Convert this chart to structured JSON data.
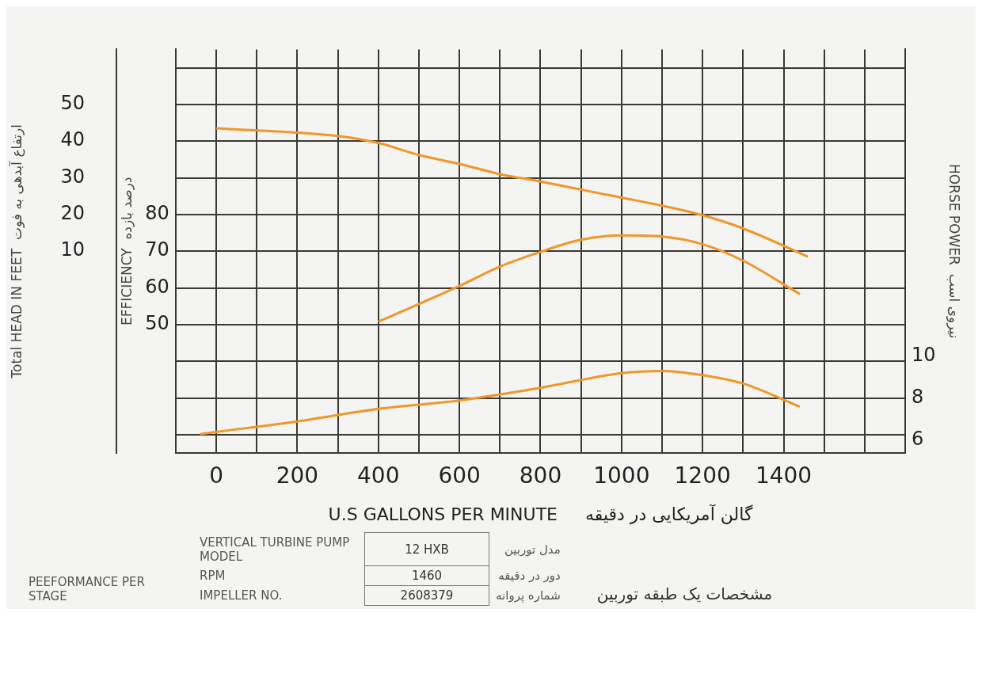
{
  "chart_data": {
    "type": "line",
    "xlabel": "U.S GALLONS PER MINUTE     گالن آمریکایی در دقیقه",
    "ylabel": "Total HEAD IN FEET  ارتفاع آبدهی به فوت",
    "y2label": "EFFICIENCY  درصد بازده",
    "y3label": "HORSE POWER  نیروی اسب",
    "xlim": [
      -100,
      1700
    ],
    "xticks": [
      0,
      {
        "value": 100,
        "label": null
      },
      200,
      {
        "value": 300,
        "label": null
      },
      400,
      {
        "value": 500,
        "label": null
      },
      600,
      {
        "value": 700,
        "label": null
      },
      800,
      {
        "value": 900,
        "label": null
      },
      1000,
      {
        "value": 1100,
        "label": null
      },
      1200,
      {
        "value": 1300,
        "label": null
      },
      1400,
      {
        "value": 1500,
        "label": null
      },
      {
        "value": 1600,
        "label": null
      }
    ],
    "ylim": [
      -45,
      65
    ],
    "yticks": [
      {
        "value": -40,
        "label": null
      },
      {
        "value": -30,
        "label": null
      },
      {
        "value": -20,
        "label": null
      },
      {
        "value": -10,
        "label": null
      },
      {
        "value": 0,
        "label": null
      },
      10,
      20,
      30,
      40,
      50,
      {
        "value": 60,
        "label": null
      }
    ],
    "y2lim": [
      15,
      125
    ],
    "y2ticks": [
      50,
      60,
      70,
      80
    ],
    "y3lim": [
      5.4,
      24.6
    ],
    "y3ticks": [
      6,
      8,
      10
    ],
    "grid": true,
    "legend": false,
    "marker": "none",
    "line_style": "solid",
    "series": [
      {
        "color": "#f0962a",
        "x": [
          0,
          300,
          400,
          500,
          600,
          700,
          800,
          900,
          1000,
          1100,
          1200,
          1300,
          1460
        ],
        "values": [
          43.5,
          41.4,
          39.5,
          36.2,
          33.8,
          31.0,
          29.0,
          26.8,
          24.6,
          22.4,
          19.8,
          16.2,
          8.5
        ]
      },
      {
        "color": "#f0962a",
        "axis": "y2",
        "x": [
          400,
          500,
          600,
          700,
          800,
          900,
          1000,
          1100,
          1200,
          1300,
          1440
        ],
        "values": [
          50.8,
          55.6,
          60.5,
          65.8,
          69.8,
          73.1,
          74.3,
          74.0,
          71.9,
          67.4,
          58.3
        ]
      },
      {
        "color": "#f0962a",
        "axis": "y3",
        "x": [
          -40,
          0,
          200,
          400,
          600,
          800,
          1000,
          1100,
          1200,
          1300,
          1440
        ],
        "values": [
          6.3,
          6.4,
          6.9,
          7.5,
          7.9,
          8.5,
          9.2,
          9.3,
          9.1,
          8.7,
          7.6
        ]
      }
    ],
    "annotations": [
      "PEEFORMANCE PER STAGE",
      "VERTICAL TURBINE PUMP MODEL",
      "12 HXB",
      "مدل توربین",
      "RPM",
      "1460",
      "دور در دقیقه",
      "IMPELLER NO.",
      "2608379",
      "شماره پروانه",
      "مشخصات یک طبقه توربین"
    ]
  }
}
